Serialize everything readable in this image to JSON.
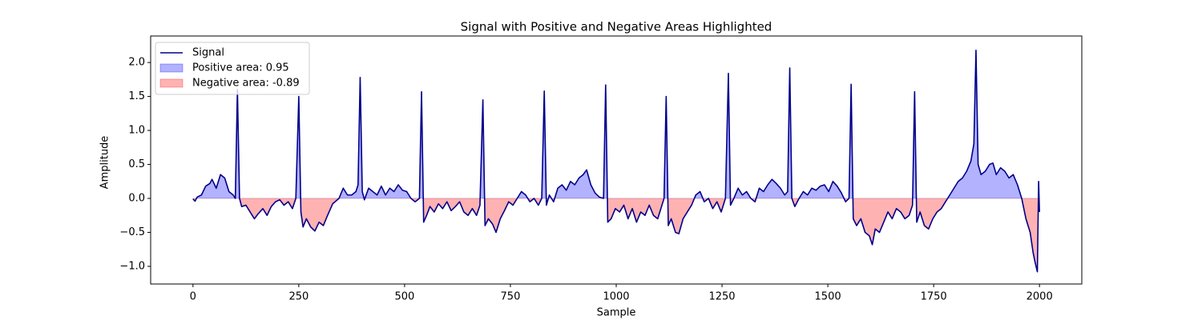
{
  "chart_data": {
    "type": "line",
    "title": "Signal with Positive and Negative Areas Highlighted",
    "xlabel": "Sample",
    "ylabel": "Amplitude",
    "xlim": [
      -100,
      2100
    ],
    "ylim": [
      -1.26,
      2.39
    ],
    "xticks": [
      0,
      250,
      500,
      750,
      1000,
      1250,
      1500,
      1750,
      2000
    ],
    "yticks": [
      {
        "value": -1,
        "label": "−1.0"
      },
      {
        "value": -0.5,
        "label": "−0.5"
      },
      {
        "value": 0,
        "label": "0.0"
      },
      {
        "value": 0.5,
        "label": "0.5"
      },
      {
        "value": 1,
        "label": "1.0"
      },
      {
        "value": 1.5,
        "label": "1.5"
      },
      {
        "value": 2,
        "label": "2.0"
      }
    ],
    "legend": "upper left",
    "fills": [
      {
        "name": "Positive area: 0.95",
        "color": "#0000ff"
      },
      {
        "name": "Negative area: -0.89",
        "color": "#ff0000"
      }
    ],
    "series": [
      {
        "name": "Signal",
        "color": "#00008b",
        "x": [
          0,
          5,
          10,
          20,
          30,
          40,
          45,
          55,
          65,
          75,
          85,
          95,
          100,
          105,
          110,
          115,
          125,
          135,
          145,
          155,
          165,
          175,
          185,
          195,
          205,
          215,
          225,
          235,
          243,
          250,
          255,
          260,
          268,
          278,
          288,
          298,
          308,
          318,
          330,
          345,
          355,
          365,
          375,
          385,
          390,
          395,
          400,
          405,
          415,
          425,
          435,
          445,
          455,
          465,
          475,
          485,
          495,
          505,
          515,
          525,
          535,
          540,
          545,
          552,
          560,
          570,
          580,
          590,
          600,
          610,
          620,
          630,
          640,
          650,
          660,
          670,
          678,
          685,
          690,
          698,
          708,
          716,
          726,
          736,
          746,
          756,
          766,
          776,
          786,
          796,
          806,
          816,
          824,
          830,
          835,
          842,
          852,
          862,
          872,
          882,
          892,
          902,
          912,
          922,
          930,
          940,
          950,
          960,
          970,
          975,
          980,
          988,
          998,
          1008,
          1018,
          1028,
          1038,
          1048,
          1058,
          1068,
          1078,
          1088,
          1098,
          1108,
          1113,
          1118,
          1123,
          1130,
          1140,
          1148,
          1158,
          1168,
          1178,
          1188,
          1198,
          1208,
          1218,
          1228,
          1238,
          1248,
          1258,
          1265,
          1270,
          1278,
          1288,
          1298,
          1308,
          1318,
          1328,
          1338,
          1348,
          1358,
          1368,
          1378,
          1388,
          1398,
          1405,
          1410,
          1415,
          1422,
          1432,
          1442,
          1452,
          1462,
          1472,
          1482,
          1492,
          1502,
          1512,
          1522,
          1532,
          1542,
          1550,
          1555,
          1560,
          1568,
          1578,
          1588,
          1598,
          1605,
          1612,
          1622,
          1632,
          1642,
          1652,
          1662,
          1672,
          1682,
          1692,
          1700,
          1705,
          1710,
          1718,
          1728,
          1738,
          1748,
          1758,
          1768,
          1778,
          1788,
          1798,
          1808,
          1818,
          1828,
          1838,
          1845,
          1850,
          1855,
          1862,
          1872,
          1882,
          1890,
          1898,
          1908,
          1918,
          1928,
          1938,
          1948,
          1958,
          1968,
          1978,
          1985,
          1990,
          1995,
          1998,
          2000
        ],
        "values": [
          -0.01,
          -0.04,
          0.02,
          0.05,
          0.18,
          0.22,
          0.28,
          0.15,
          0.35,
          0.3,
          0.1,
          0.05,
          0.0,
          1.6,
          0.0,
          -0.12,
          -0.1,
          -0.2,
          -0.3,
          -0.22,
          -0.15,
          -0.25,
          -0.12,
          -0.05,
          -0.02,
          -0.1,
          -0.05,
          -0.15,
          0.0,
          1.5,
          -0.2,
          -0.42,
          -0.3,
          -0.42,
          -0.48,
          -0.35,
          -0.4,
          -0.25,
          -0.08,
          0.0,
          0.15,
          0.05,
          0.05,
          0.1,
          0.2,
          1.78,
          0.1,
          -0.02,
          0.15,
          0.1,
          0.05,
          0.18,
          0.05,
          0.15,
          0.1,
          0.2,
          0.12,
          0.1,
          0.0,
          -0.05,
          0.0,
          1.57,
          -0.35,
          -0.25,
          -0.12,
          -0.2,
          -0.08,
          -0.15,
          -0.05,
          -0.18,
          -0.12,
          -0.05,
          -0.2,
          -0.25,
          -0.15,
          -0.25,
          -0.1,
          1.45,
          -0.4,
          -0.3,
          -0.38,
          -0.5,
          -0.3,
          -0.18,
          -0.05,
          -0.1,
          0.0,
          0.1,
          0.05,
          -0.05,
          0.0,
          -0.1,
          0.0,
          1.58,
          -0.1,
          0.05,
          -0.05,
          0.15,
          0.2,
          0.12,
          0.25,
          0.2,
          0.3,
          0.35,
          0.42,
          0.2,
          0.08,
          0.02,
          0.0,
          1.67,
          -0.35,
          -0.3,
          -0.15,
          -0.2,
          -0.1,
          -0.3,
          -0.15,
          -0.35,
          -0.2,
          -0.25,
          -0.1,
          -0.25,
          -0.3,
          -0.1,
          0.0,
          1.5,
          -0.4,
          -0.3,
          -0.5,
          -0.52,
          -0.3,
          -0.2,
          -0.1,
          0.05,
          0.1,
          -0.05,
          0.0,
          -0.15,
          -0.05,
          -0.2,
          0.0,
          1.84,
          -0.1,
          0.0,
          0.15,
          0.05,
          0.1,
          0.0,
          -0.05,
          0.15,
          0.1,
          0.2,
          0.28,
          0.22,
          0.15,
          0.05,
          0.1,
          1.92,
          0.0,
          -0.12,
          0.0,
          0.1,
          0.05,
          0.15,
          0.12,
          0.18,
          0.2,
          0.1,
          0.25,
          0.18,
          0.08,
          -0.05,
          0.0,
          1.68,
          -0.3,
          -0.4,
          -0.3,
          -0.5,
          -0.55,
          -0.68,
          -0.45,
          -0.5,
          -0.35,
          -0.2,
          -0.3,
          -0.15,
          -0.2,
          -0.3,
          -0.25,
          -0.1,
          1.57,
          -0.35,
          -0.2,
          -0.4,
          -0.45,
          -0.3,
          -0.2,
          -0.15,
          -0.05,
          0.05,
          0.15,
          0.25,
          0.3,
          0.4,
          0.55,
          0.8,
          2.18,
          0.5,
          0.35,
          0.4,
          0.5,
          0.52,
          0.35,
          0.45,
          0.4,
          0.3,
          0.35,
          0.2,
          0.0,
          -0.3,
          -0.5,
          -0.8,
          -0.95,
          -1.08,
          0.25,
          -0.2
        ]
      }
    ]
  }
}
